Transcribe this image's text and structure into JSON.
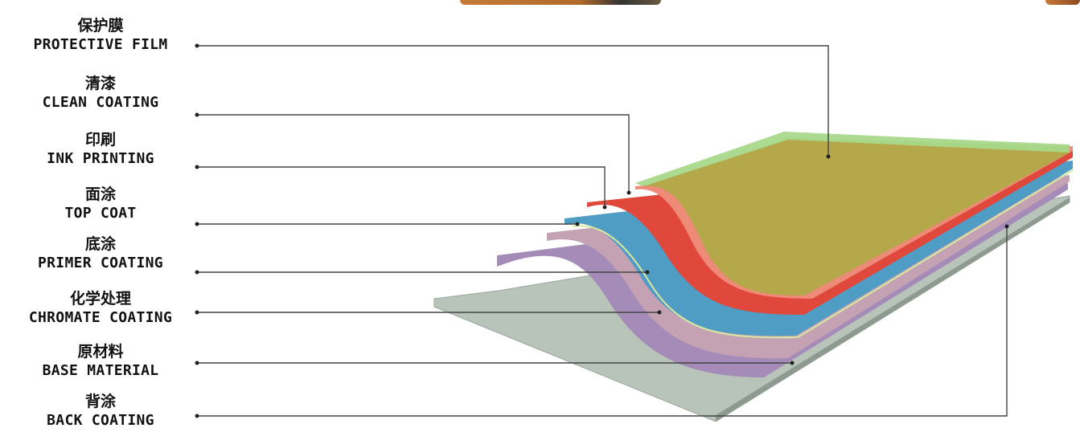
{
  "layers": [
    {
      "cn": "保护膜",
      "en": "PROTECTIVE FILM"
    },
    {
      "cn": "清漆",
      "en": "CLEAN COATING"
    },
    {
      "cn": "印刷",
      "en": "INK PRINTING"
    },
    {
      "cn": "面涂",
      "en": "TOP COAT"
    },
    {
      "cn": "底涂",
      "en": "PRIMER COATING"
    },
    {
      "cn": "化学处理",
      "en": "CHROMATE COATING"
    },
    {
      "cn": "原材料",
      "en": "BASE MATERIAL"
    },
    {
      "cn": "背涂",
      "en": "BACK COATING"
    }
  ],
  "colors": {
    "protective_film": "#a8d88a",
    "clean_coating_surface": "#b5a84a",
    "ink_printing": "#e0483c",
    "ink_printing_light": "#ee8a78",
    "top_coat": "#4f9cc4",
    "primer_coating": "#b89ab0",
    "chromate_coating": "#a58cb8",
    "base_material": "#b8c4ba",
    "line": "#444444"
  }
}
